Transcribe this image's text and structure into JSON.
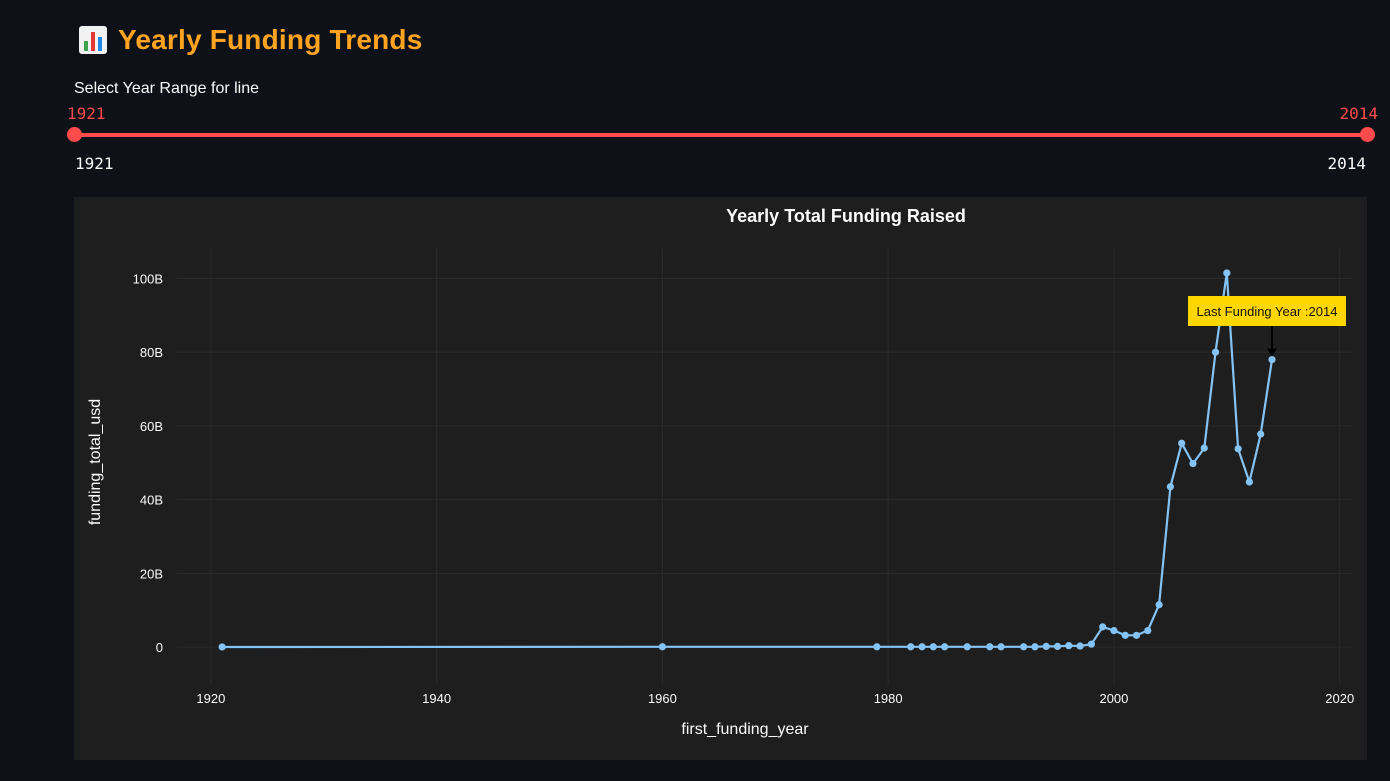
{
  "header": {
    "icon": "bar-chart-emoji-icon",
    "title": "Yearly Funding Trends",
    "title_color": "#ffa421"
  },
  "slider": {
    "label": "Select Year Range for line",
    "selected_min": "1921",
    "selected_max": "2014",
    "range_min_label": "1921",
    "range_max_label": "2014",
    "accent_color": "#ff4b4b"
  },
  "chart_data": {
    "type": "line",
    "title": "Yearly Total Funding Raised",
    "xlabel": "first_funding_year",
    "ylabel": "funding_total_usd",
    "xlim": [
      1917,
      2021
    ],
    "ylim": [
      -10,
      108
    ],
    "x_ticks": [
      1920,
      1940,
      1960,
      1980,
      2000,
      2020
    ],
    "y_ticks": [
      0,
      20,
      40,
      60,
      80,
      100
    ],
    "y_tick_labels": [
      "0",
      "20B",
      "40B",
      "60B",
      "80B",
      "100B"
    ],
    "y_unit": "billions USD",
    "grid": true,
    "line_color": "#84c3f6",
    "series": [
      {
        "x": [
          1921,
          1960,
          1979,
          1982,
          1983,
          1984,
          1985,
          1987,
          1989,
          1990,
          1992,
          1993,
          1994,
          1995,
          1996,
          1997,
          1998,
          1999,
          2000,
          2001,
          2002,
          2003,
          2004,
          2005,
          2006,
          2007,
          2008,
          2009,
          2010,
          2011,
          2012,
          2013,
          2014
        ],
        "y": [
          0.05,
          0.1,
          0.1,
          0.1,
          0.1,
          0.1,
          0.1,
          0.1,
          0.1,
          0.1,
          0.1,
          0.1,
          0.2,
          0.2,
          0.4,
          0.3,
          0.8,
          5.5,
          4.5,
          3.2,
          3.2,
          4.5,
          11.5,
          43.5,
          55.3,
          49.8,
          54.0,
          80.0,
          101.5,
          53.8,
          44.8,
          57.8,
          78.0
        ]
      }
    ],
    "annotation": {
      "text": "Last Funding Year :2014",
      "x": 2014,
      "y": 78.0,
      "bgcolor": "#ffd700",
      "arrow": true
    }
  }
}
